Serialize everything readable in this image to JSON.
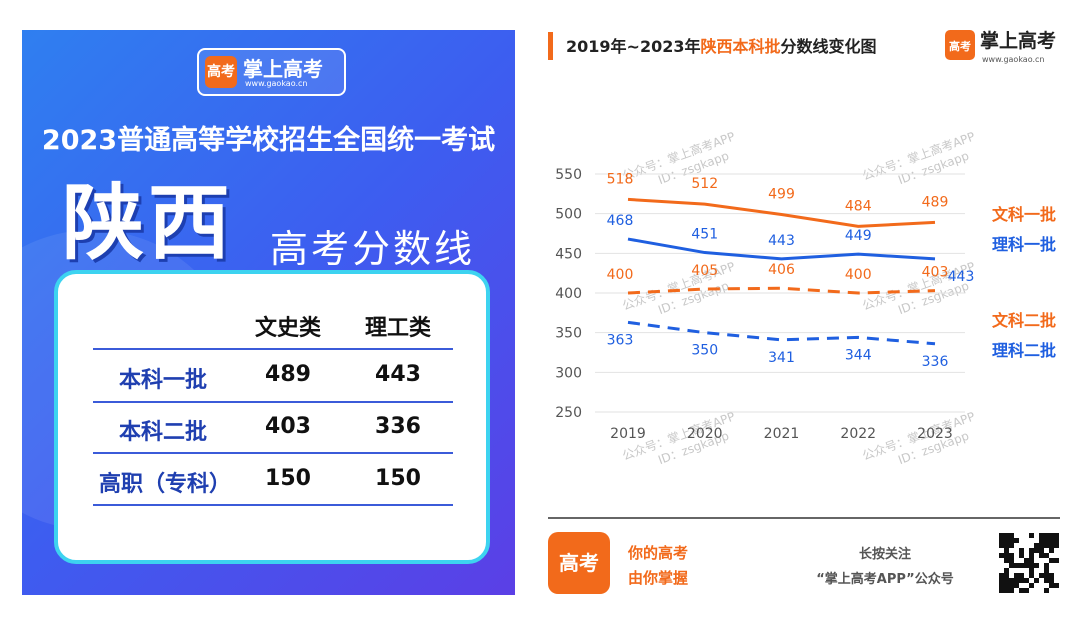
{
  "poster": {
    "logo": "掌上高考",
    "logo_url": "www.gaokao.cn",
    "logo_mark": "高考",
    "headline": "2023普通高等学校招生全国统一考试",
    "province": "陕西",
    "subtitle": "高考分数线",
    "table": {
      "columns": [
        "文史类",
        "理工类"
      ],
      "rows": [
        [
          "本科一批",
          489,
          443
        ],
        [
          "本科二批",
          403,
          336
        ],
        [
          "高职（专科）",
          150,
          150
        ]
      ]
    }
  },
  "header": {
    "logo": "掌上高考",
    "logo_url": "www.gaokao.cn",
    "logo_mark": "高考"
  },
  "chart_data": {
    "type": "line",
    "title_parts": [
      "2019年~2023年",
      "陕西本科批",
      "分数线变化图"
    ],
    "categories": [
      "2019",
      "2020",
      "2021",
      "2022",
      "2023"
    ],
    "ylim": [
      250,
      550
    ],
    "yticks": [
      250,
      300,
      350,
      400,
      450,
      500,
      550
    ],
    "grid": true,
    "series": [
      {
        "name": "文科一批",
        "color": "#f26a1b",
        "dashed": false,
        "values": [
          518,
          512,
          499,
          484,
          489
        ]
      },
      {
        "name": "理科一批",
        "color": "#1f5fe0",
        "dashed": false,
        "values": [
          468,
          451,
          443,
          449,
          443
        ]
      },
      {
        "name": "文科二批",
        "color": "#f26a1b",
        "dashed": true,
        "values": [
          400,
          405,
          406,
          400,
          403
        ]
      },
      {
        "name": "理科二批",
        "color": "#1f5fe0",
        "dashed": true,
        "values": [
          363,
          350,
          341,
          344,
          336
        ]
      }
    ],
    "watermark": [
      "公众号：掌上高考APP",
      "ID：zsgkapp"
    ]
  },
  "footer": {
    "slogan": [
      "你的高考",
      "由你掌握"
    ],
    "follow": [
      "长按关注",
      "“掌上高考APP”公众号"
    ]
  }
}
